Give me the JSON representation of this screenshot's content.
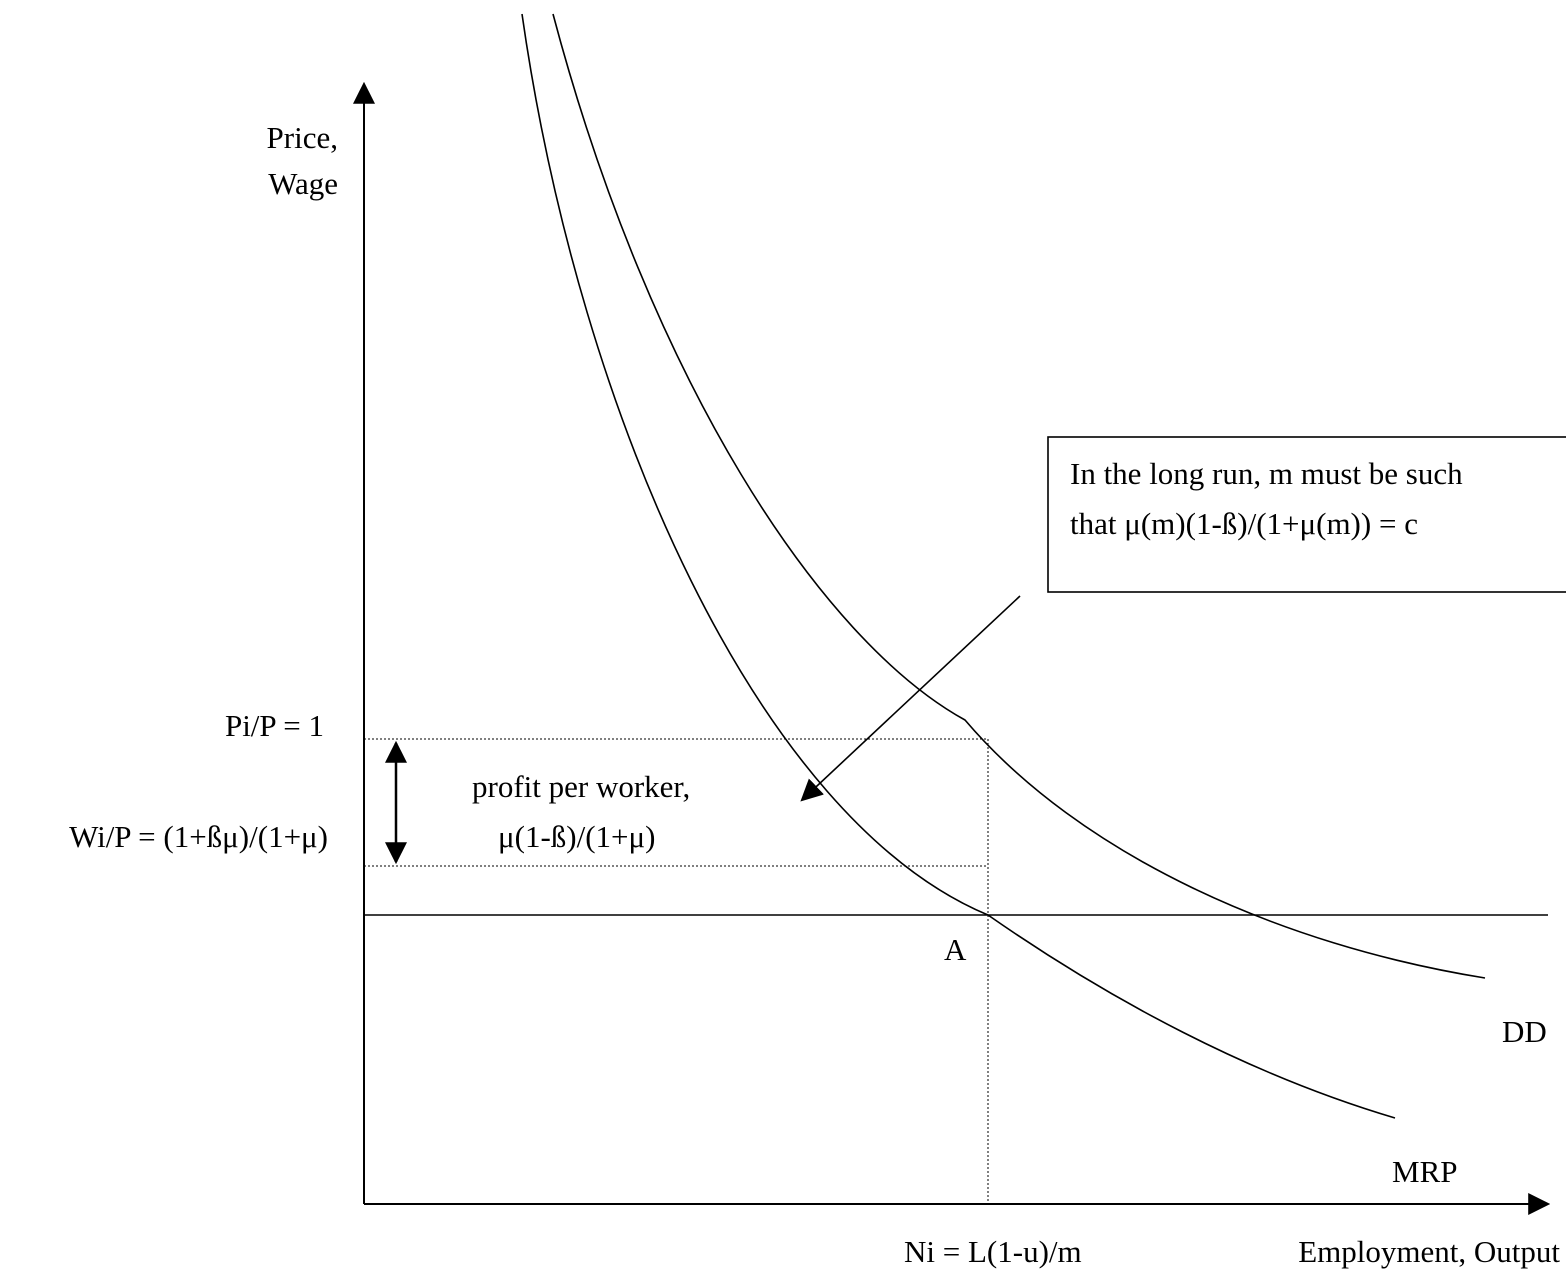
{
  "axes": {
    "y_label_line1": "Price,",
    "y_label_line2": "Wage",
    "x_label": "Employment, Output"
  },
  "levels": {
    "price_label": "Pi/P = 1",
    "wage_label": "Wi/P = (1+ßμ)/(1+μ)"
  },
  "profit": {
    "line1": "profit per worker,",
    "line2": "μ(1-ß)/(1+μ)"
  },
  "point_label": "A",
  "employment_label": "Ni = L(1-u)/m",
  "curves": {
    "dd_label": "DD",
    "mrp_label": "MRP"
  },
  "callout": {
    "line1": "In the long run, m must be such",
    "line2": "that  μ(m)(1-ß)/(1+μ(m)) = c"
  },
  "colors": {
    "ink": "#000000",
    "background": "#ffffff"
  }
}
